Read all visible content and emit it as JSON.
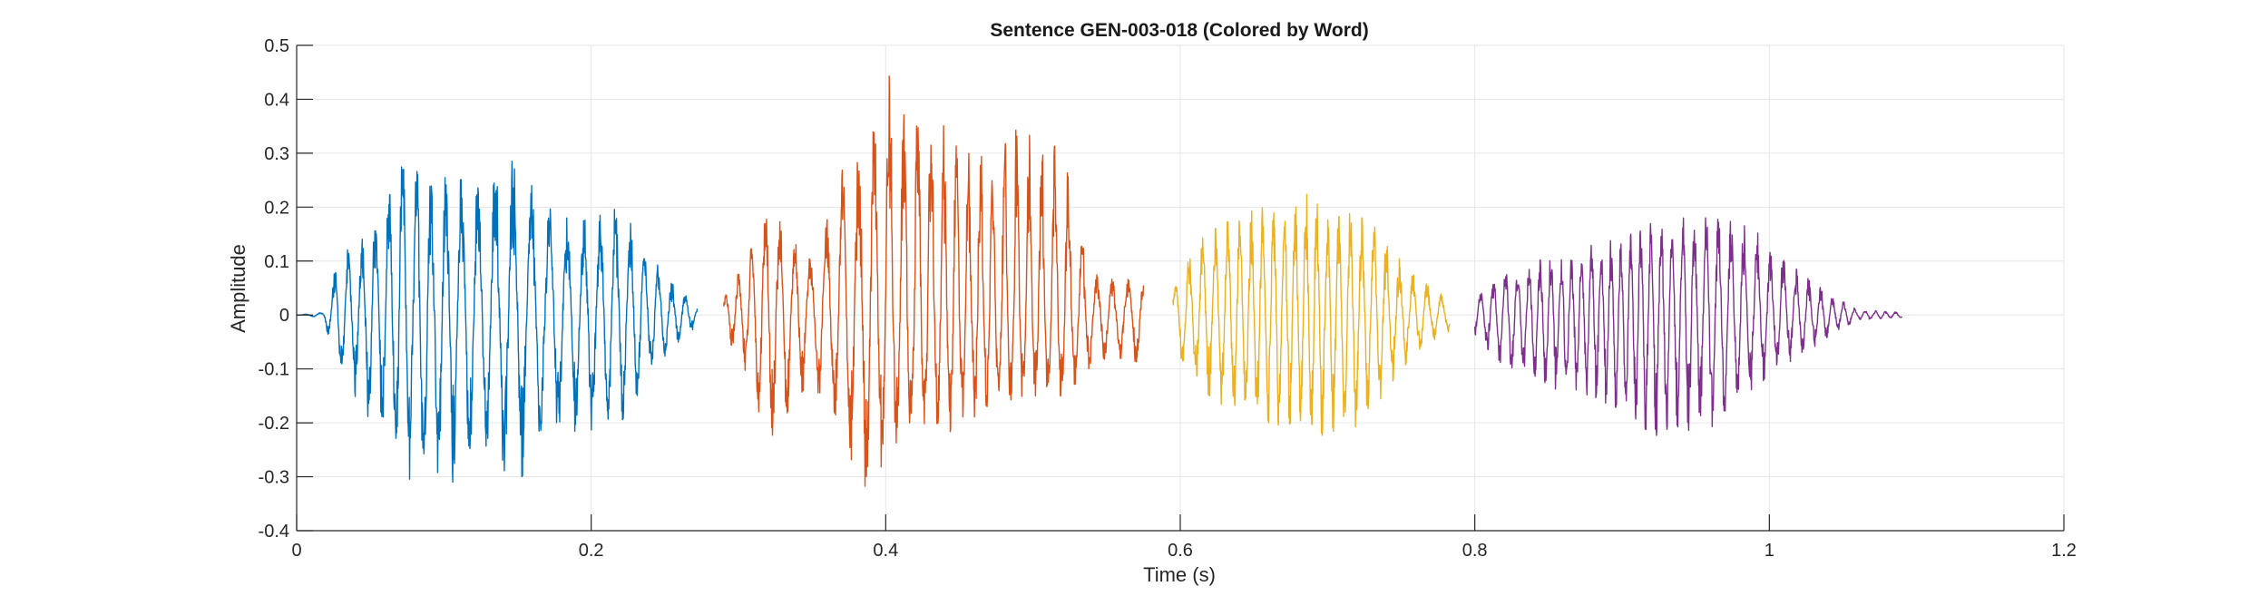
{
  "chart_data": {
    "type": "line",
    "title": "Sentence GEN-003-018 (Colored by Word)",
    "xlabel": "Time (s)",
    "ylabel": "Amplitude",
    "xlim": [
      0,
      1.2
    ],
    "ylim": [
      -0.4,
      0.5
    ],
    "xticks": [
      0,
      0.2,
      0.4,
      0.6,
      0.8,
      1,
      1.2
    ],
    "xtick_labels": [
      "0",
      "0.2",
      "0.4",
      "0.6",
      "0.8",
      "1",
      "1.2"
    ],
    "yticks": [
      -0.4,
      -0.3,
      -0.2,
      -0.1,
      0,
      0.1,
      0.2,
      0.3,
      0.4,
      0.5
    ],
    "ytick_labels": [
      "-0.4",
      "-0.3",
      "-0.2",
      "-0.1",
      "0",
      "0.1",
      "0.2",
      "0.3",
      "0.4",
      "0.5"
    ],
    "grid": true,
    "legend": false,
    "series": [
      {
        "color": "#0072BD",
        "t_start": 0.0,
        "t_end": 0.272,
        "envelope": [
          [
            0.0,
            0.0
          ],
          [
            0.018,
            0.005
          ],
          [
            0.028,
            0.1
          ],
          [
            0.05,
            0.17
          ],
          [
            0.07,
            0.3
          ],
          [
            0.09,
            0.26
          ],
          [
            0.11,
            0.25
          ],
          [
            0.13,
            0.26
          ],
          [
            0.15,
            0.31
          ],
          [
            0.17,
            0.2
          ],
          [
            0.19,
            0.17
          ],
          [
            0.22,
            0.2
          ],
          [
            0.24,
            0.11
          ],
          [
            0.255,
            0.06
          ],
          [
            0.272,
            0.02
          ]
        ],
        "min_envelope": [
          [
            0.0,
            0.0
          ],
          [
            0.018,
            -0.005
          ],
          [
            0.028,
            -0.1
          ],
          [
            0.05,
            -0.2
          ],
          [
            0.07,
            -0.3
          ],
          [
            0.1,
            -0.32
          ],
          [
            0.13,
            -0.27
          ],
          [
            0.15,
            -0.31
          ],
          [
            0.17,
            -0.24
          ],
          [
            0.19,
            -0.22
          ],
          [
            0.22,
            -0.2
          ],
          [
            0.24,
            -0.11
          ],
          [
            0.255,
            -0.06
          ],
          [
            0.272,
            -0.02
          ]
        ]
      },
      {
        "color": "#D95319",
        "t_start": 0.29,
        "t_end": 0.575,
        "envelope": [
          [
            0.29,
            0.03
          ],
          [
            0.31,
            0.13
          ],
          [
            0.32,
            0.2
          ],
          [
            0.335,
            0.15
          ],
          [
            0.35,
            0.1
          ],
          [
            0.37,
            0.28
          ],
          [
            0.39,
            0.38
          ],
          [
            0.4,
            0.45
          ],
          [
            0.42,
            0.4
          ],
          [
            0.44,
            0.35
          ],
          [
            0.46,
            0.31
          ],
          [
            0.48,
            0.34
          ],
          [
            0.5,
            0.35
          ],
          [
            0.52,
            0.3
          ],
          [
            0.54,
            0.08
          ],
          [
            0.56,
            0.06
          ],
          [
            0.575,
            0.08
          ]
        ],
        "min_envelope": [
          [
            0.29,
            -0.03
          ],
          [
            0.31,
            -0.13
          ],
          [
            0.32,
            -0.26
          ],
          [
            0.335,
            -0.17
          ],
          [
            0.35,
            -0.12
          ],
          [
            0.37,
            -0.24
          ],
          [
            0.385,
            -0.34
          ],
          [
            0.4,
            -0.28
          ],
          [
            0.42,
            -0.23
          ],
          [
            0.44,
            -0.22
          ],
          [
            0.46,
            -0.2
          ],
          [
            0.48,
            -0.16
          ],
          [
            0.5,
            -0.15
          ],
          [
            0.52,
            -0.15
          ],
          [
            0.54,
            -0.1
          ],
          [
            0.56,
            -0.08
          ],
          [
            0.575,
            -0.09
          ]
        ]
      },
      {
        "color": "#EDB120",
        "t_start": 0.595,
        "t_end": 0.783,
        "envelope": [
          [
            0.595,
            0.05
          ],
          [
            0.61,
            0.13
          ],
          [
            0.63,
            0.18
          ],
          [
            0.65,
            0.2
          ],
          [
            0.67,
            0.2
          ],
          [
            0.69,
            0.23
          ],
          [
            0.71,
            0.2
          ],
          [
            0.73,
            0.17
          ],
          [
            0.75,
            0.1
          ],
          [
            0.77,
            0.05
          ],
          [
            0.783,
            0.03
          ]
        ],
        "min_envelope": [
          [
            0.595,
            -0.05
          ],
          [
            0.61,
            -0.13
          ],
          [
            0.63,
            -0.17
          ],
          [
            0.65,
            -0.19
          ],
          [
            0.67,
            -0.21
          ],
          [
            0.69,
            -0.22
          ],
          [
            0.71,
            -0.23
          ],
          [
            0.73,
            -0.18
          ],
          [
            0.75,
            -0.1
          ],
          [
            0.77,
            -0.05
          ],
          [
            0.783,
            -0.03
          ]
        ]
      },
      {
        "color": "#7E2F8E",
        "t_start": 0.8,
        "t_end": 1.09,
        "envelope": [
          [
            0.8,
            0.04
          ],
          [
            0.82,
            0.08
          ],
          [
            0.84,
            0.1
          ],
          [
            0.86,
            0.11
          ],
          [
            0.88,
            0.13
          ],
          [
            0.9,
            0.15
          ],
          [
            0.92,
            0.17
          ],
          [
            0.94,
            0.18
          ],
          [
            0.96,
            0.18
          ],
          [
            0.98,
            0.17
          ],
          [
            1.0,
            0.14
          ],
          [
            1.02,
            0.08
          ],
          [
            1.04,
            0.04
          ],
          [
            1.06,
            0.01
          ],
          [
            1.09,
            0.005
          ]
        ],
        "min_envelope": [
          [
            0.8,
            -0.04
          ],
          [
            0.82,
            -0.1
          ],
          [
            0.84,
            -0.13
          ],
          [
            0.86,
            -0.14
          ],
          [
            0.88,
            -0.15
          ],
          [
            0.9,
            -0.18
          ],
          [
            0.92,
            -0.22
          ],
          [
            0.94,
            -0.24
          ],
          [
            0.96,
            -0.21
          ],
          [
            0.98,
            -0.16
          ],
          [
            1.0,
            -0.12
          ],
          [
            1.02,
            -0.08
          ],
          [
            1.04,
            -0.04
          ],
          [
            1.06,
            -0.01
          ],
          [
            1.09,
            -0.005
          ]
        ]
      }
    ]
  }
}
